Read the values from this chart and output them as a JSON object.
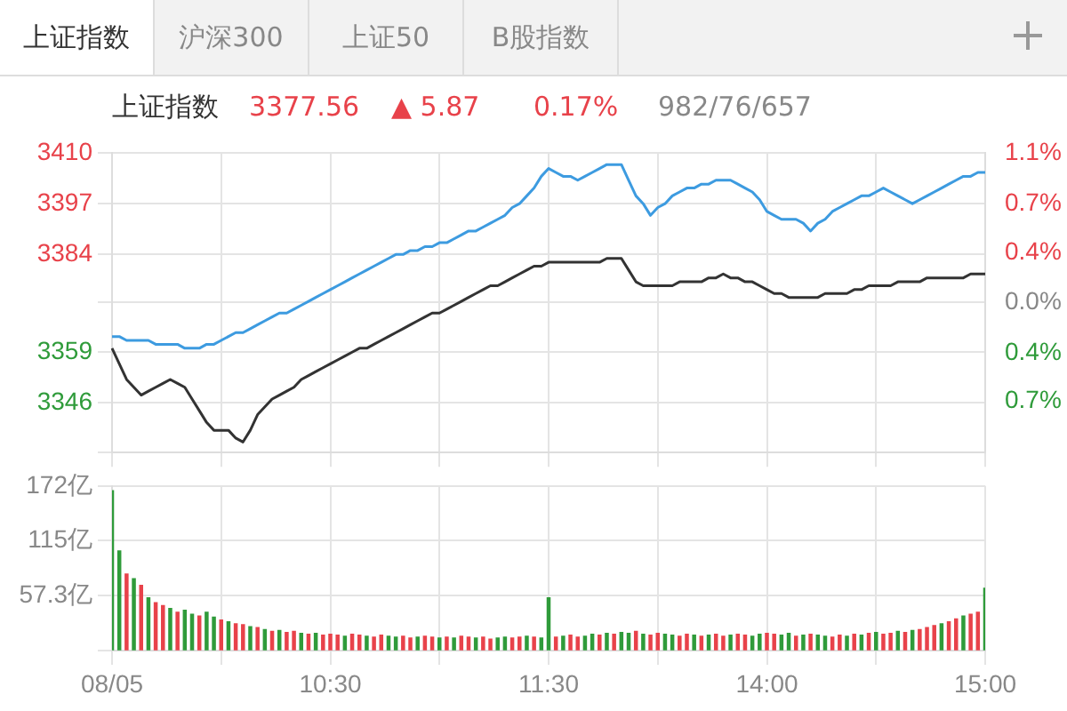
{
  "chart_data": [
    {
      "type": "other",
      "annotations": [
        "上证指数",
        "沪深300",
        "上证50",
        "B股指数"
      ]
    },
    {
      "type": "line",
      "title": "上证指数",
      "annotations": [
        "3377.56",
        "▲ 5.87",
        "0.17%",
        "982/76/657"
      ],
      "categories": [
        null,
        null,
        null,
        null,
        null,
        null,
        null,
        null,
        null,
        null,
        null,
        null,
        null,
        null,
        null,
        null,
        null,
        null,
        null,
        null,
        null,
        null,
        null,
        null,
        null,
        null,
        null,
        null,
        null,
        null,
        null,
        null,
        null,
        null,
        null,
        null,
        null,
        null,
        null,
        null,
        null,
        null,
        null,
        null,
        null,
        null,
        null,
        null,
        null,
        null,
        null,
        null,
        null,
        null,
        null,
        null,
        null,
        null,
        null,
        null,
        null,
        null,
        null,
        null,
        null,
        null,
        null,
        null,
        null,
        null,
        null,
        null,
        null,
        null,
        null,
        null,
        null,
        null,
        null,
        null,
        null,
        null,
        null,
        null,
        null,
        null,
        null,
        null,
        null,
        null,
        null,
        null,
        null,
        null,
        null,
        null,
        null,
        null,
        null,
        null,
        null,
        null,
        null,
        null,
        null,
        null,
        null,
        null,
        null,
        null,
        null,
        null,
        null,
        null,
        null,
        null,
        null,
        null,
        null,
        null,
        null
      ],
      "ylim": [
        3333.3,
        3410
      ],
      "yticks": [
        3410,
        3397,
        3384,
        {
          "value": 3371.7,
          "label": null
        },
        3359,
        3346,
        {
          "value": 3333.3,
          "label": null
        }
      ],
      "y2lim": [
        -1.14,
        1.14
      ],
      "y2ticks": [
        {
          "value": 1.14,
          "label": "1.1%"
        },
        {
          "value": 0.75,
          "label": "0.7%"
        },
        {
          "value": 0.38,
          "label": "0.4%"
        },
        {
          "value": 0,
          "label": "0.0%"
        },
        {
          "value": -0.38,
          "label": "0.4%"
        },
        {
          "value": -0.75,
          "label": "0.7%"
        },
        {
          "value": -1.14,
          "label": null
        }
      ],
      "tick_labels": "y",
      "grid": true,
      "series": [
        {
          "color": "#3d9be0",
          "values": [
            3363,
            3363,
            3362,
            3362,
            3362,
            3362,
            3361,
            3361,
            3361,
            3361,
            3360,
            3360,
            3360,
            3361,
            3361,
            3362,
            3363,
            3364,
            3364,
            3365,
            3366,
            3367,
            3368,
            3369,
            3369,
            3370,
            3371,
            3372,
            3373,
            3374,
            3375,
            3376,
            3377,
            3378,
            3379,
            3380,
            3381,
            3382,
            3383,
            3384,
            3384,
            3385,
            3385,
            3386,
            3386,
            3387,
            3387,
            3388,
            3389,
            3390,
            3390,
            3391,
            3392,
            3393,
            3394,
            3396,
            3397,
            3399,
            3401,
            3404,
            3406,
            3405,
            3404,
            3404,
            3403,
            3404,
            3405,
            3406,
            3407,
            3407,
            3407,
            3403,
            3399,
            3397,
            3394,
            3396,
            3397,
            3399,
            3400,
            3401,
            3401,
            3402,
            3402,
            3403,
            3403,
            3403,
            3402,
            3401,
            3400,
            3398,
            3395,
            3394,
            3393,
            3393,
            3393,
            3392,
            3390,
            3392,
            3393,
            3395,
            3396,
            3397,
            3398,
            3399,
            3399,
            3400,
            3401,
            3400,
            3399,
            3398,
            3397,
            3398,
            3399,
            3400,
            3401,
            3402,
            3403,
            3404,
            3404,
            3405,
            3405
          ]
        },
        {
          "color": "#333333",
          "values": [
            3360,
            3356,
            3352,
            3350,
            3348,
            3349,
            3350,
            3351,
            3352,
            3351,
            3350,
            3347,
            3344,
            3341,
            3339,
            3339,
            3339,
            3337,
            3336,
            3339,
            3343,
            3345,
            3347,
            3348,
            3349,
            3350,
            3352,
            3353,
            3354,
            3355,
            3356,
            3357,
            3358,
            3359,
            3360,
            3360,
            3361,
            3362,
            3363,
            3364,
            3365,
            3366,
            3367,
            3368,
            3369,
            3369,
            3370,
            3371,
            3372,
            3373,
            3374,
            3375,
            3376,
            3376,
            3377,
            3378,
            3379,
            3380,
            3381,
            3381,
            3382,
            3382,
            3382,
            3382,
            3382,
            3382,
            3382,
            3382,
            3383,
            3383,
            3383,
            3380,
            3377,
            3376,
            3376,
            3376,
            3376,
            3376,
            3377,
            3377,
            3377,
            3377,
            3378,
            3378,
            3379,
            3378,
            3378,
            3377,
            3377,
            3376,
            3375,
            3374,
            3374,
            3373,
            3373,
            3373,
            3373,
            3373,
            3374,
            3374,
            3374,
            3374,
            3375,
            3375,
            3376,
            3376,
            3376,
            3376,
            3377,
            3377,
            3377,
            3377,
            3378,
            3378,
            3378,
            3378,
            3378,
            3378,
            3379,
            3379,
            3379
          ]
        }
      ]
    },
    {
      "type": "bar",
      "categories": [
        "08/05",
        null,
        null,
        null,
        null,
        null,
        null,
        null,
        null,
        null,
        null,
        null,
        null,
        null,
        null,
        null,
        null,
        null,
        null,
        null,
        null,
        null,
        null,
        null,
        null,
        null,
        null,
        null,
        null,
        null,
        "10:30",
        null,
        null,
        null,
        null,
        null,
        null,
        null,
        null,
        null,
        null,
        null,
        null,
        null,
        null,
        null,
        null,
        null,
        null,
        null,
        null,
        null,
        null,
        null,
        null,
        null,
        null,
        null,
        null,
        null,
        "11:30",
        null,
        null,
        null,
        null,
        null,
        null,
        null,
        null,
        null,
        null,
        null,
        null,
        null,
        null,
        null,
        null,
        null,
        null,
        null,
        null,
        null,
        null,
        null,
        null,
        null,
        null,
        null,
        null,
        null,
        "14:00",
        null,
        null,
        null,
        null,
        null,
        null,
        null,
        null,
        null,
        null,
        null,
        null,
        null,
        null,
        null,
        null,
        null,
        null,
        null,
        null,
        null,
        null,
        null,
        null,
        null,
        null,
        null,
        null,
        null,
        "15:00"
      ],
      "ylim": [
        0,
        172
      ],
      "yticks": [
        {
          "value": 0,
          "label": null
        },
        {
          "value": 57.3,
          "label": "57.3亿"
        },
        {
          "value": 115,
          "label": "115亿"
        },
        {
          "value": 172,
          "label": "172亿"
        }
      ],
      "grid": true,
      "values": [
        167,
        104,
        80,
        75,
        68,
        55,
        50,
        47,
        44,
        40,
        42,
        38,
        36,
        40,
        35,
        32,
        30,
        28,
        27,
        25,
        24,
        22,
        20,
        21,
        19,
        20,
        18,
        17,
        18,
        16,
        17,
        16,
        15,
        17,
        16,
        15,
        14,
        16,
        15,
        14,
        15,
        13,
        14,
        15,
        14,
        13,
        14,
        13,
        15,
        14,
        13,
        14,
        12,
        13,
        14,
        13,
        14,
        15,
        14,
        13,
        55,
        14,
        15,
        16,
        14,
        15,
        17,
        16,
        18,
        17,
        19,
        18,
        20,
        17,
        16,
        18,
        17,
        16,
        15,
        17,
        16,
        15,
        16,
        17,
        15,
        16,
        17,
        16,
        15,
        17,
        18,
        17,
        16,
        18,
        15,
        16,
        17,
        16,
        15,
        14,
        16,
        15,
        17,
        16,
        18,
        19,
        17,
        18,
        20,
        19,
        21,
        22,
        24,
        26,
        28,
        30,
        33,
        36,
        38,
        40,
        65
      ],
      "colors": [
        "#2f9b3a",
        "#2f9b3a",
        "#e8424a",
        "#2f9b3a",
        "#e8424a",
        "#2f9b3a",
        "#e8424a",
        "#e8424a",
        "#2f9b3a",
        "#e8424a",
        "#2f9b3a",
        "#2f9b3a",
        "#e8424a",
        "#2f9b3a",
        "#2f9b3a",
        "#e8424a",
        "#2f9b3a",
        "#e8424a",
        "#e8424a",
        "#2f9b3a",
        "#e8424a",
        "#2f9b3a",
        "#e8424a",
        "#2f9b3a",
        "#e8424a",
        "#e8424a",
        "#2f9b3a",
        "#e8424a",
        "#2f9b3a",
        "#e8424a",
        "#e8424a",
        "#e8424a",
        "#2f9b3a",
        "#e8424a",
        "#e8424a",
        "#2f9b3a",
        "#e8424a",
        "#e8424a",
        "#2f9b3a",
        "#2f9b3a",
        "#e8424a",
        "#e8424a",
        "#2f9b3a",
        "#e8424a",
        "#e8424a",
        "#2f9b3a",
        "#e8424a",
        "#2f9b3a",
        "#e8424a",
        "#e8424a",
        "#2f9b3a",
        "#e8424a",
        "#e8424a",
        "#2f9b3a",
        "#2f9b3a",
        "#e8424a",
        "#e8424a",
        "#2f9b3a",
        "#e8424a",
        "#2f9b3a",
        "#2f9b3a",
        "#e8424a",
        "#2f9b3a",
        "#e8424a",
        "#e8424a",
        "#2f9b3a",
        "#2f9b3a",
        "#e8424a",
        "#2f9b3a",
        "#e8424a",
        "#2f9b3a",
        "#2f9b3a",
        "#e8424a",
        "#2f9b3a",
        "#e8424a",
        "#e8424a",
        "#2f9b3a",
        "#2f9b3a",
        "#e8424a",
        "#e8424a",
        "#2f9b3a",
        "#e8424a",
        "#2f9b3a",
        "#e8424a",
        "#e8424a",
        "#2f9b3a",
        "#e8424a",
        "#e8424a",
        "#2f9b3a",
        "#2f9b3a",
        "#e8424a",
        "#e8424a",
        "#2f9b3a",
        "#2f9b3a",
        "#e8424a",
        "#2f9b3a",
        "#e8424a",
        "#2f9b3a",
        "#2f9b3a",
        "#e8424a",
        "#e8424a",
        "#2f9b3a",
        "#e8424a",
        "#2f9b3a",
        "#e8424a",
        "#2f9b3a",
        "#e8424a",
        "#e8424a",
        "#2f9b3a",
        "#e8424a",
        "#2f9b3a",
        "#e8424a",
        "#e8424a",
        "#e8424a",
        "#2f9b3a",
        "#e8424a",
        "#e8424a",
        "#2f9b3a",
        "#e8424a",
        "#e8424a",
        "#2f9b3a"
      ]
    }
  ]
}
